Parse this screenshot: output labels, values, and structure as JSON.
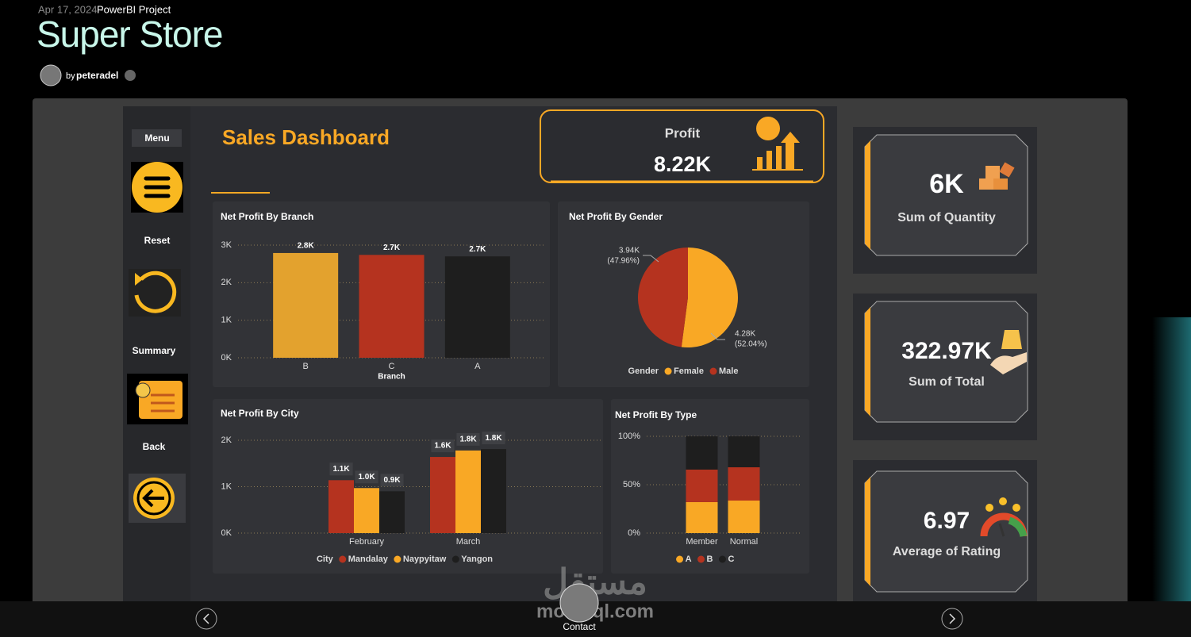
{
  "header": {
    "date": "Apr 17, 2024 -",
    "project": "PowerBI Project",
    "title": "Super Store",
    "by": "by",
    "author": "peteradel"
  },
  "sidebar": {
    "menu": "Menu",
    "reset": "Reset",
    "summary": "Summary",
    "back": "Back"
  },
  "dashboard": {
    "title": "Sales Dashboard",
    "profit": {
      "label": "Profit",
      "value": "8.22K"
    },
    "kpis": [
      {
        "value": "6K",
        "label": "Sum of Quantity"
      },
      {
        "value": "322.97K",
        "label": "Sum of Total"
      },
      {
        "value": "6.97",
        "label": "Average of Rating"
      }
    ]
  },
  "chart_data": [
    {
      "type": "bar",
      "title": "Net Profit By Branch",
      "xlabel": "Branch",
      "categories": [
        "B",
        "C",
        "A"
      ],
      "values": [
        2790,
        2740,
        2700
      ],
      "value_labels": [
        "2.8K",
        "2.7K",
        "2.7K"
      ],
      "colors": [
        "#e3a22e",
        "#b5331f",
        "#1e1e1e"
      ],
      "ylim": [
        0,
        3000
      ],
      "yticks": [
        {
          "value": 0,
          "label": "0K"
        },
        {
          "value": 1000,
          "label": "1K"
        },
        {
          "value": 2000,
          "label": "2K"
        },
        {
          "value": 3000,
          "label": "3K"
        }
      ],
      "grid": true
    },
    {
      "type": "pie",
      "title": "Net Profit By Gender",
      "legend_title": "Gender",
      "categories": [
        "Female",
        "Male"
      ],
      "values": [
        4280,
        3940
      ],
      "value_labels": [
        "4.28K",
        "3.94K"
      ],
      "percent_labels": [
        "(52.04%)",
        "(47.96%)"
      ],
      "colors": [
        "#f9a825",
        "#b5331f"
      ]
    },
    {
      "type": "bar",
      "title": "Net Profit By City",
      "legend_title": "City",
      "categories": [
        "February",
        "March"
      ],
      "series": [
        {
          "name": "Mandalay",
          "color": "#b5331f",
          "values": [
            1140,
            1640
          ],
          "value_labels": [
            "1.1K",
            "1.6K"
          ]
        },
        {
          "name": "Naypyitaw",
          "color": "#f9a825",
          "values": [
            970,
            1780
          ],
          "value_labels": [
            "1.0K",
            "1.8K"
          ]
        },
        {
          "name": "Yangon",
          "color": "#1e1e1e",
          "values": [
            900,
            1810
          ],
          "value_labels": [
            "0.9K",
            "1.8K"
          ]
        }
      ],
      "ylim": [
        0,
        2000
      ],
      "yticks": [
        {
          "value": 0,
          "label": "0K"
        },
        {
          "value": 1000,
          "label": "1K"
        },
        {
          "value": 2000,
          "label": "2K"
        }
      ],
      "grid": true
    },
    {
      "type": "bar",
      "stacked": true,
      "title": "Net Profit By Type",
      "categories": [
        "Member",
        "Normal"
      ],
      "series": [
        {
          "name": "A",
          "color": "#f9a825",
          "values": [
            32,
            33.6
          ]
        },
        {
          "name": "B",
          "color": "#b5331f",
          "values": [
            33.6,
            34.4
          ]
        },
        {
          "name": "C",
          "color": "#1e1e1e",
          "values": [
            34.4,
            32
          ]
        }
      ],
      "ylim": [
        0,
        100
      ],
      "yticks": [
        {
          "value": 0,
          "label": "0%"
        },
        {
          "value": 50,
          "label": "50%"
        },
        {
          "value": 100,
          "label": "100%"
        }
      ],
      "grid": true
    }
  ],
  "footer": {
    "contact": "Contact",
    "watermark": "mostaql.com",
    "watermark_ar": "مستقل"
  }
}
